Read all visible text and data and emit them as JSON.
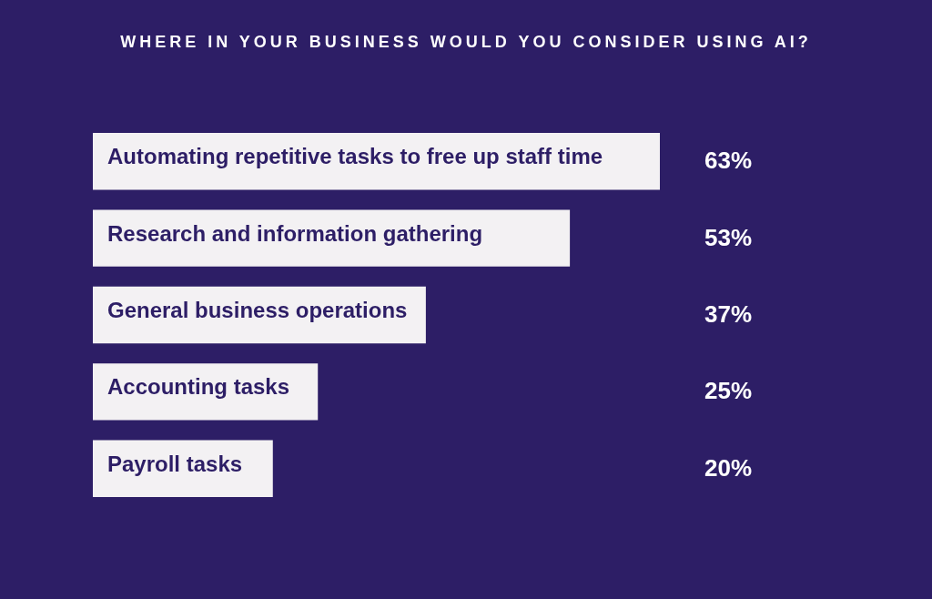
{
  "chart_data": {
    "type": "bar",
    "orientation": "horizontal",
    "title": "WHERE IN YOUR BUSINESS WOULD YOU CONSIDER USING AI?",
    "categories": [
      "Automating repetitive tasks to free up staff time",
      "Research and information gathering",
      "General business operations",
      "Accounting tasks",
      "Payroll tasks"
    ],
    "values": [
      63,
      53,
      37,
      25,
      20
    ],
    "value_labels": [
      "63%",
      "53%",
      "37%",
      "25%",
      "20%"
    ],
    "color": "#f3f1f3"
  }
}
